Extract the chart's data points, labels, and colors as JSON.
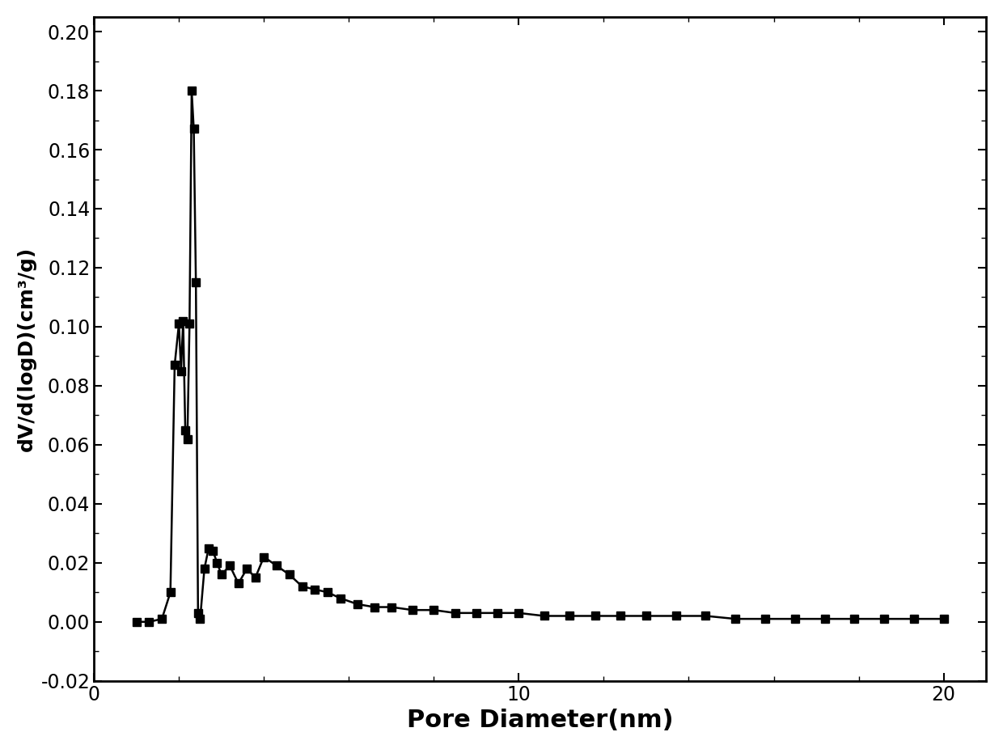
{
  "x": [
    1.0,
    1.3,
    1.6,
    1.8,
    1.9,
    2.0,
    2.05,
    2.1,
    2.15,
    2.2,
    2.25,
    2.3,
    2.35,
    2.4,
    2.45,
    2.5,
    2.6,
    2.7,
    2.8,
    2.9,
    3.0,
    3.2,
    3.4,
    3.6,
    3.8,
    4.0,
    4.3,
    4.6,
    4.9,
    5.2,
    5.5,
    5.8,
    6.2,
    6.6,
    7.0,
    7.5,
    8.0,
    8.5,
    9.0,
    9.5,
    10.0,
    10.6,
    11.2,
    11.8,
    12.4,
    13.0,
    13.7,
    14.4,
    15.1,
    15.8,
    16.5,
    17.2,
    17.9,
    18.6,
    19.3,
    20.0
  ],
  "y": [
    0.0,
    0.0,
    0.001,
    0.01,
    0.087,
    0.101,
    0.085,
    0.102,
    0.065,
    0.062,
    0.101,
    0.18,
    0.167,
    0.115,
    0.003,
    0.001,
    0.018,
    0.025,
    0.024,
    0.02,
    0.016,
    0.019,
    0.013,
    0.018,
    0.015,
    0.022,
    0.019,
    0.016,
    0.012,
    0.011,
    0.01,
    0.008,
    0.006,
    0.005,
    0.005,
    0.004,
    0.004,
    0.003,
    0.003,
    0.003,
    0.003,
    0.002,
    0.002,
    0.002,
    0.002,
    0.002,
    0.002,
    0.002,
    0.001,
    0.001,
    0.001,
    0.001,
    0.001,
    0.001,
    0.001,
    0.001
  ],
  "xlabel": "Pore Diameter(nm)",
  "ylabel": "dV/d(logD)(cm³/g)",
  "xlim": [
    0,
    21
  ],
  "ylim": [
    -0.02,
    0.205
  ],
  "xticks": [
    0,
    10,
    20
  ],
  "yticks": [
    -0.02,
    0.0,
    0.02,
    0.04,
    0.06,
    0.08,
    0.1,
    0.12,
    0.14,
    0.16,
    0.18,
    0.2
  ],
  "line_color": "#000000",
  "marker": "s",
  "markersize": 7,
  "linewidth": 1.8,
  "xlabel_fontsize": 22,
  "ylabel_fontsize": 18,
  "tick_fontsize": 17,
  "background_color": "#ffffff",
  "figure_bg": "#ffffff"
}
